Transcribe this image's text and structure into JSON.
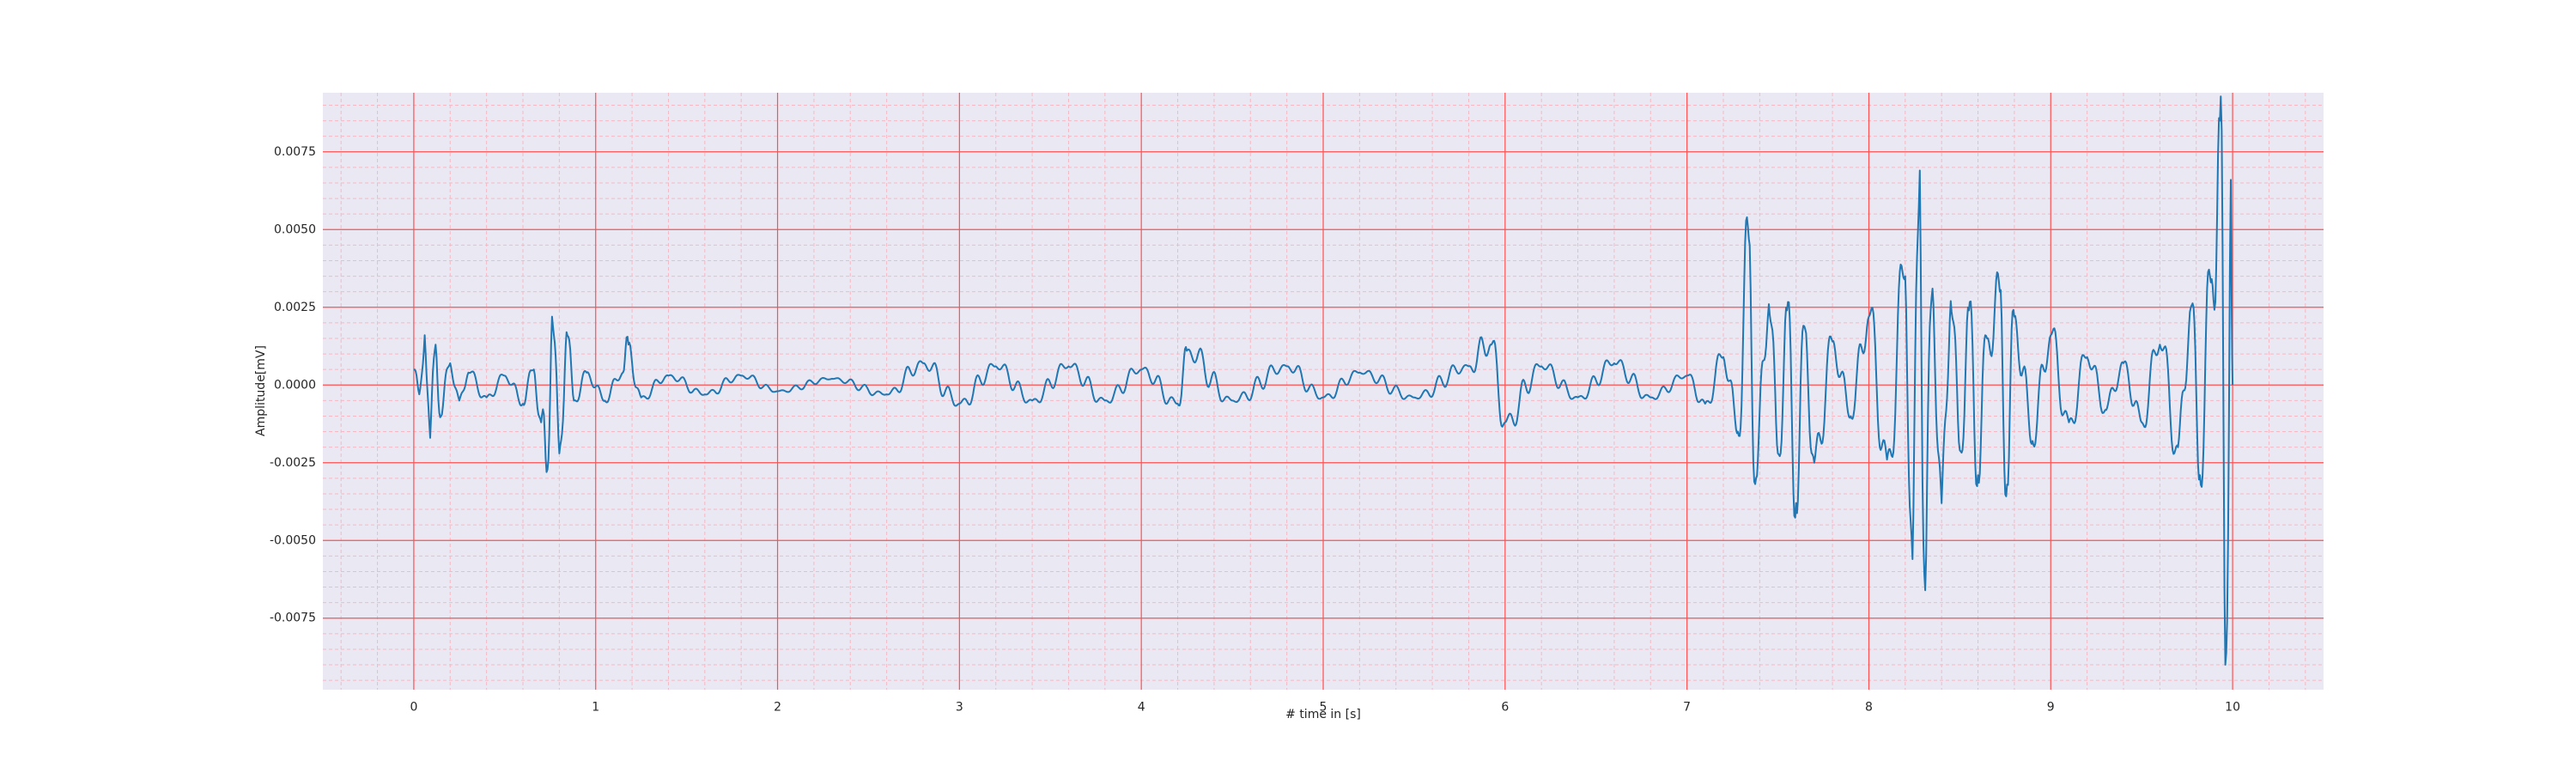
{
  "chart_data": {
    "type": "line",
    "title": "",
    "xlabel": "# time in [s]",
    "ylabel": "Amplitude[mV]",
    "xlim": [
      -0.5,
      10.5
    ],
    "ylim": [
      -0.0098,
      0.0094
    ],
    "x_ticks": [
      0,
      1,
      2,
      3,
      4,
      5,
      6,
      7,
      8,
      9,
      10
    ],
    "x_tick_labels": [
      "0",
      "1",
      "2",
      "3",
      "4",
      "5",
      "6",
      "7",
      "8",
      "9",
      "10"
    ],
    "y_ticks": [
      0.0075,
      0.005,
      0.0025,
      0.0,
      -0.0025,
      -0.005,
      -0.0075
    ],
    "y_tick_labels": [
      "0.0075",
      "0.0050",
      "0.0025",
      "0.0000",
      "-0.0025",
      "-0.0050",
      "-0.0075"
    ],
    "grid": true,
    "minor_grid": true,
    "colors": {
      "plot_background": "#eae8f2",
      "major_grid": "#ff5050",
      "minor_grid": "#f7b8c4",
      "line": "#1f77b4"
    },
    "series": [
      {
        "name": "",
        "x": [
          0.0,
          0.03,
          0.06,
          0.09,
          0.12,
          0.15,
          0.2,
          0.25,
          0.3,
          0.4,
          0.5,
          0.6,
          0.66,
          0.7,
          0.73,
          0.76,
          0.8,
          0.84,
          0.88,
          0.95,
          1.05,
          1.15,
          1.18,
          1.25,
          1.4,
          1.6,
          1.8,
          2.0,
          2.3,
          2.6,
          2.8,
          3.0,
          3.2,
          3.4,
          3.6,
          3.8,
          4.0,
          4.2,
          4.25,
          4.5,
          4.8,
          5.0,
          5.2,
          5.5,
          5.8,
          5.92,
          6.0,
          6.2,
          6.4,
          6.6,
          6.8,
          7.0,
          7.1,
          7.2,
          7.28,
          7.34,
          7.38,
          7.45,
          7.5,
          7.55,
          7.6,
          7.65,
          7.7,
          7.8,
          7.9,
          8.0,
          8.1,
          8.2,
          8.24,
          8.28,
          8.31,
          8.35,
          8.4,
          8.45,
          8.5,
          8.55,
          8.6,
          8.65,
          8.72,
          8.76,
          8.8,
          8.9,
          9.0,
          9.1,
          9.2,
          9.3,
          9.4,
          9.5,
          9.6,
          9.7,
          9.77,
          9.82,
          9.88,
          9.93,
          9.96,
          9.99,
          10.0
        ],
        "y": [
          0.0005,
          -0.0003,
          0.0016,
          -0.0017,
          0.0013,
          -0.001,
          0.0007,
          -0.0005,
          0.0004,
          -0.0004,
          0.0003,
          -0.0006,
          0.0005,
          -0.0012,
          -0.0028,
          0.0022,
          -0.0022,
          0.0017,
          -0.0005,
          0.0004,
          -0.0005,
          0.0004,
          0.0013,
          -0.0004,
          0.0003,
          -0.0003,
          0.0003,
          -0.0002,
          0.0002,
          -0.0003,
          0.0007,
          -0.0006,
          0.0006,
          -0.0005,
          0.0006,
          -0.0005,
          0.0005,
          -0.0006,
          0.0011,
          -0.0005,
          0.0006,
          -0.0004,
          0.0004,
          -0.0004,
          0.0006,
          0.0013,
          -0.0012,
          0.0006,
          -0.0004,
          0.0007,
          -0.0004,
          0.0003,
          -0.0006,
          0.0009,
          -0.0015,
          0.0047,
          -0.003,
          0.0026,
          -0.0022,
          0.0024,
          -0.0038,
          0.0018,
          -0.0025,
          0.0014,
          -0.001,
          0.0022,
          -0.0024,
          0.0035,
          -0.0056,
          0.0069,
          -0.0066,
          0.0031,
          -0.0038,
          0.0027,
          -0.0021,
          0.0024,
          -0.0029,
          0.0015,
          0.003,
          -0.0032,
          0.0022,
          -0.0018,
          0.0016,
          -0.0012,
          0.0009,
          -0.0008,
          0.0007,
          -0.0012,
          0.0013,
          -0.002,
          0.0025,
          -0.0029,
          0.0033,
          0.0085,
          -0.009,
          0.0066,
          0.0
        ]
      }
    ]
  }
}
